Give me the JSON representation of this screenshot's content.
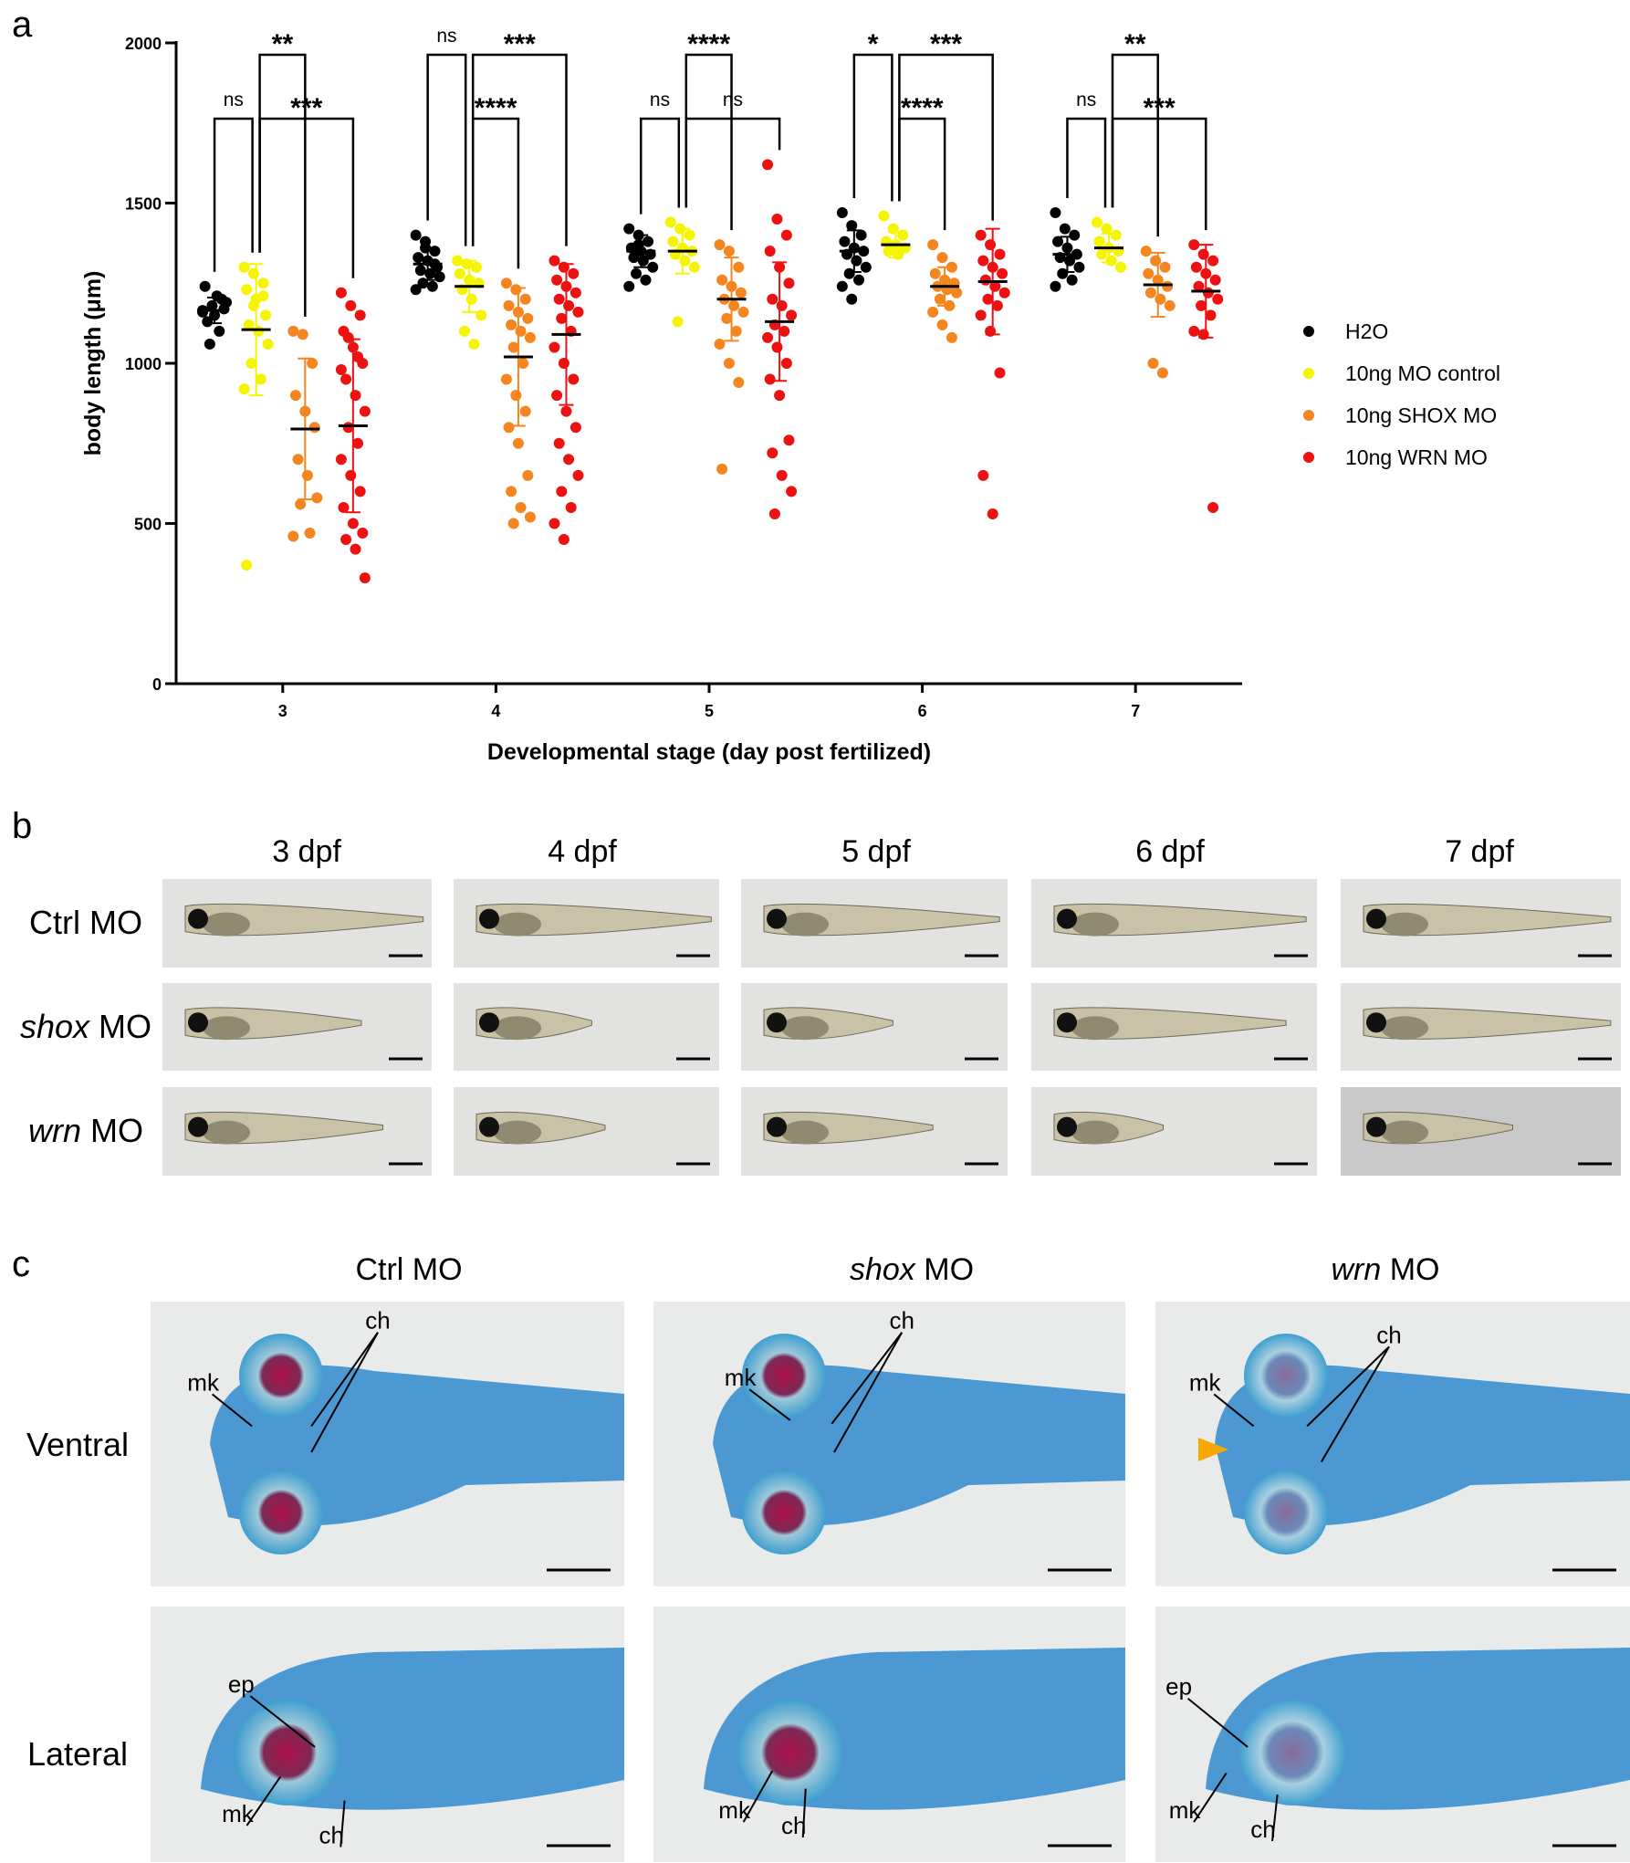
{
  "panel_labels": [
    "a",
    "b",
    "c"
  ],
  "chart_data": {
    "type": "dotplot",
    "x_label": "Developmental stage (day post fertilized)",
    "y_label": "body length  (μm)",
    "categories": [
      "3",
      "4",
      "5",
      "6",
      "7"
    ],
    "ylim": [
      0,
      2000
    ],
    "yticks": [
      0,
      500,
      1000,
      1500,
      2000
    ],
    "series": [
      {
        "name": "H2O",
        "color": "#000000",
        "values": [
          [
            1160,
            1180,
            1200,
            1240,
            1150,
            1170,
            1130,
            1210,
            1190,
            1060,
            1100,
            1165
          ],
          [
            1400,
            1380,
            1350,
            1330,
            1320,
            1300,
            1290,
            1280,
            1270,
            1250,
            1240,
            1230,
            1360,
            1310
          ],
          [
            1420,
            1400,
            1380,
            1360,
            1350,
            1340,
            1330,
            1320,
            1300,
            1280,
            1260,
            1240,
            1370
          ],
          [
            1470,
            1430,
            1400,
            1380,
            1360,
            1350,
            1340,
            1320,
            1300,
            1280,
            1260,
            1240,
            1200
          ],
          [
            1470,
            1420,
            1400,
            1380,
            1360,
            1340,
            1330,
            1320,
            1300,
            1280,
            1260,
            1240
          ]
        ],
        "means": [
          1165,
          1310,
          1350,
          1350,
          1340
        ],
        "sd": [
          40,
          50,
          50,
          65,
          55
        ]
      },
      {
        "name": "10ng MO control",
        "color": "#f5f500",
        "values": [
          [
            1300,
            1280,
            1250,
            1230,
            1200,
            1150,
            1120,
            1100,
            1060,
            1000,
            950,
            920,
            1180,
            1210,
            370
          ],
          [
            1320,
            1310,
            1300,
            1280,
            1260,
            1250,
            1230,
            1200,
            1150,
            1100,
            1060
          ],
          [
            1440,
            1420,
            1400,
            1380,
            1360,
            1350,
            1340,
            1320,
            1300,
            1130
          ],
          [
            1460,
            1420,
            1400,
            1380,
            1370,
            1360,
            1350,
            1340
          ],
          [
            1440,
            1420,
            1400,
            1380,
            1360,
            1350,
            1340,
            1320,
            1300
          ]
        ],
        "means": [
          1105,
          1240,
          1350,
          1370,
          1360
        ],
        "sd": [
          205,
          80,
          70,
          40,
          45
        ]
      },
      {
        "name": "10ng SHOX MO",
        "color": "#f5851f",
        "values": [
          [
            1100,
            1090,
            1000,
            900,
            850,
            800,
            700,
            650,
            580,
            560,
            470,
            460
          ],
          [
            1250,
            1230,
            1200,
            1180,
            1160,
            1140,
            1120,
            1100,
            1080,
            1050,
            1000,
            950,
            900,
            850,
            800,
            750,
            650,
            600,
            550,
            520,
            500
          ],
          [
            1370,
            1350,
            1300,
            1260,
            1240,
            1220,
            1200,
            1180,
            1160,
            1140,
            1100,
            1060,
            1000,
            940,
            670
          ],
          [
            1370,
            1330,
            1300,
            1280,
            1260,
            1250,
            1240,
            1230,
            1220,
            1200,
            1180,
            1160,
            1120,
            1080
          ],
          [
            1350,
            1320,
            1300,
            1280,
            1260,
            1240,
            1220,
            1200,
            1180,
            1000,
            970
          ]
        ],
        "means": [
          795,
          1020,
          1200,
          1240,
          1245
        ],
        "sd": [
          220,
          215,
          130,
          60,
          100
        ]
      },
      {
        "name": "10ng WRN MO",
        "color": "#ee1111",
        "values": [
          [
            1220,
            1180,
            1150,
            1100,
            1050,
            1000,
            950,
            900,
            850,
            800,
            750,
            700,
            650,
            600,
            550,
            500,
            470,
            450,
            420,
            330,
            1080,
            1020,
            980
          ],
          [
            1320,
            1300,
            1280,
            1260,
            1240,
            1220,
            1200,
            1180,
            1160,
            1140,
            1100,
            1050,
            1000,
            950,
            900,
            850,
            800,
            750,
            700,
            650,
            600,
            550,
            500,
            450
          ],
          [
            1620,
            1450,
            1400,
            1350,
            1300,
            1250,
            1200,
            1180,
            1150,
            1120,
            1100,
            1080,
            1050,
            1000,
            950,
            900,
            760,
            720,
            650,
            600,
            530
          ],
          [
            1400,
            1370,
            1340,
            1320,
            1300,
            1280,
            1260,
            1240,
            1220,
            1200,
            1180,
            1150,
            1100,
            970,
            650,
            530
          ],
          [
            1370,
            1340,
            1320,
            1300,
            1280,
            1260,
            1240,
            1220,
            1200,
            1180,
            1150,
            1100,
            1090,
            550
          ]
        ],
        "means": [
          805,
          1090,
          1130,
          1255,
          1225
        ],
        "sd": [
          270,
          220,
          185,
          165,
          145
        ]
      }
    ],
    "significance": [
      [
        "ns",
        "**",
        "***"
      ],
      [
        "ns",
        "****",
        "***"
      ],
      [
        "ns",
        "****",
        "ns"
      ],
      [
        "*",
        "****",
        "***"
      ],
      [
        "ns",
        "**",
        "***"
      ]
    ]
  },
  "panel_b": {
    "columns": [
      "3 dpf",
      "4 dpf",
      "5 dpf",
      "6 dpf",
      "7 dpf"
    ],
    "rows": [
      {
        "text": "Ctrl MO"
      },
      {
        "italic": "shox",
        "text": "MO"
      },
      {
        "italic": "wrn",
        "text": "MO"
      }
    ]
  },
  "panel_c": {
    "columns": [
      {
        "text": "Ctrl MO"
      },
      {
        "italic": "shox",
        "text": "MO"
      },
      {
        "italic": "wrn",
        "text": "MO"
      }
    ],
    "rows": [
      "Ventral",
      "Lateral"
    ],
    "labels": [
      [
        [
          "ch",
          "mk"
        ],
        [
          "ch",
          "mk"
        ],
        [
          "ch",
          "mk"
        ]
      ],
      [
        [
          "ep",
          "mk",
          "ch"
        ],
        [
          "mk",
          "ch"
        ],
        [
          "ep",
          "mk",
          "ch"
        ]
      ]
    ]
  }
}
